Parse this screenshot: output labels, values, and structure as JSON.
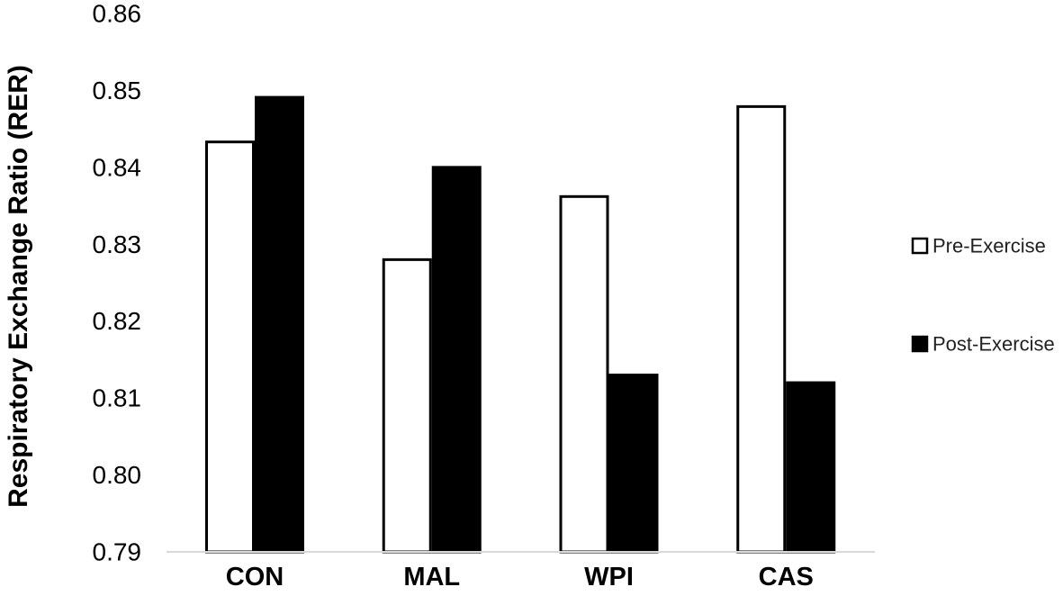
{
  "chart_data": {
    "type": "bar",
    "categories": [
      "CON",
      "MAL",
      "WPI",
      "CAS"
    ],
    "series": [
      {
        "name": "Pre-Exercise",
        "values": [
          0.8433,
          0.828,
          0.8362,
          0.8479
        ],
        "fill": "#ffffff",
        "stroke": "#000000"
      },
      {
        "name": "Post-Exercise",
        "values": [
          0.8491,
          0.84,
          0.813,
          0.812
        ],
        "fill": "#000000",
        "stroke": "#000000"
      }
    ],
    "ylabel": "Respiratory Exchange Ratio (RER)",
    "xlabel": "",
    "title": "",
    "ylim": [
      0.79,
      0.86
    ],
    "yticks": [
      "0.79",
      "0.80",
      "0.81",
      "0.82",
      "0.83",
      "0.84",
      "0.85",
      "0.86"
    ],
    "ytick_values": [
      0.79,
      0.8,
      0.81,
      0.82,
      0.83,
      0.84,
      0.85,
      0.86
    ],
    "grid": false,
    "legend_position": "right",
    "axis_color": "#d9d9d9"
  }
}
